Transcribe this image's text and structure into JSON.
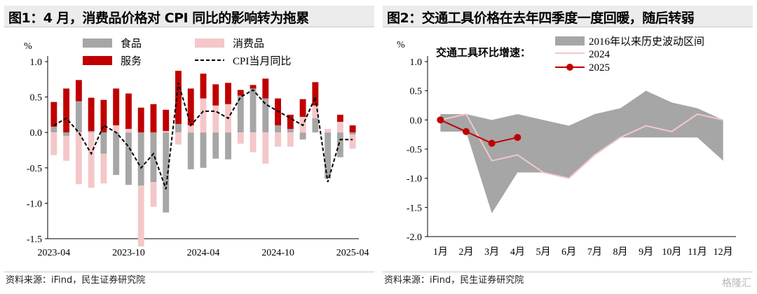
{
  "panel1": {
    "title": "图1：4 月，消费品价格对 CPI 同比的影响转为拖累",
    "source": "资料来源：iFind，民生证券研究院",
    "chart_data": {
      "type": "bar",
      "ylabel": "%",
      "ylim": [
        -1.5,
        1.0
      ],
      "yticks": [
        "1.0",
        "0.5",
        "0.0",
        "-0.5",
        "-1.0",
        "-1.5"
      ],
      "ytick_values": [
        1.0,
        0.5,
        0.0,
        -0.5,
        -1.0,
        -1.5
      ],
      "xtick_labels": [
        {
          "index": 0,
          "label": "2023-04"
        },
        {
          "index": 6,
          "label": "2023-10"
        },
        {
          "index": 12,
          "label": "2024-04"
        },
        {
          "index": 18,
          "label": "2024-10"
        },
        {
          "index": 24,
          "label": "2025-04"
        }
      ],
      "legend": [
        "食品",
        "消费品",
        "服务",
        "CPI当月同比"
      ],
      "colors": {
        "food": "#a6a6a6",
        "consumer": "#f4c7c9",
        "service": "#c00000",
        "cpi": "#000000"
      },
      "series": [
        {
          "name": "食品",
          "values": [
            0.08,
            -0.05,
            0.44,
            0.02,
            -0.3,
            -0.6,
            -0.74,
            -0.75,
            -0.7,
            -1.13,
            0.12,
            -0.52,
            -0.5,
            -0.37,
            -0.38,
            0.52,
            0.62,
            0.48,
            0.1,
            0.05,
            -0.1,
            0.2,
            -0.65,
            -0.35,
            -0.03
          ]
        },
        {
          "name": "消费品",
          "values": [
            -0.32,
            -0.35,
            -0.73,
            -0.78,
            -0.42,
            0.1,
            0.05,
            -0.86,
            -0.35,
            0.02,
            -0.17,
            0.1,
            0.48,
            0.38,
            0.4,
            -0.16,
            -0.28,
            -0.44,
            -0.2,
            -0.2,
            0.22,
            0.18,
            0.05,
            0.15,
            -0.2
          ]
        },
        {
          "name": "服务",
          "values": [
            0.35,
            0.62,
            0.3,
            0.47,
            0.46,
            0.52,
            0.5,
            0.35,
            0.4,
            0.3,
            0.75,
            0.52,
            0.35,
            0.3,
            0.3,
            0.08,
            0.05,
            0.28,
            0.38,
            0.2,
            0.25,
            0.33,
            0.0,
            0.1,
            0.1
          ]
        },
        {
          "name": "CPI当月同比",
          "values": [
            0.1,
            0.2,
            0.0,
            -0.3,
            0.1,
            0.0,
            -0.2,
            -0.5,
            -0.3,
            -0.8,
            0.7,
            0.1,
            0.3,
            0.3,
            0.2,
            0.5,
            0.6,
            0.4,
            0.3,
            0.2,
            0.1,
            0.5,
            -0.7,
            -0.1,
            -0.1
          ]
        }
      ]
    }
  },
  "panel2": {
    "title": "图2：交通工具价格在去年四季度一度回暖，随后转弱",
    "source": "资料来源：iFind，民生证券研究院",
    "inner_label": "交通工具环比增速：",
    "watermark": "格隆汇",
    "chart_data": {
      "type": "line",
      "ylabel": "%",
      "ylim": [
        -2.0,
        1.0
      ],
      "yticks": [
        "1.0",
        "0.5",
        "0.0",
        "-0.5",
        "-1.0",
        "-1.5",
        "-2.0"
      ],
      "ytick_values": [
        1.0,
        0.5,
        0.0,
        -0.5,
        -1.0,
        -1.5,
        -2.0
      ],
      "categories": [
        "1月",
        "2月",
        "3月",
        "4月",
        "5月",
        "6月",
        "7月",
        "8月",
        "9月",
        "10月",
        "11月",
        "12月"
      ],
      "legend": [
        "2016年以来历史波动区间",
        "2024",
        "2025"
      ],
      "colors": {
        "band": "#a6a6a6",
        "y2024": "#f4c7c9",
        "y2025": "#c00000"
      },
      "band": {
        "upper": [
          0.1,
          0.1,
          0.0,
          0.1,
          0.0,
          -0.1,
          0.1,
          0.2,
          0.5,
          0.3,
          0.2,
          0.0
        ],
        "lower": [
          -0.2,
          -0.2,
          -1.6,
          -0.9,
          -0.9,
          -1.0,
          -0.6,
          -0.3,
          -0.3,
          -0.3,
          -0.3,
          -0.7
        ]
      },
      "series": [
        {
          "name": "2024",
          "values": [
            0.0,
            0.1,
            -0.7,
            -0.6,
            -0.9,
            -1.0,
            -0.6,
            -0.3,
            -0.1,
            -0.2,
            0.1,
            0.0
          ]
        },
        {
          "name": "2025",
          "values": [
            0.0,
            -0.2,
            -0.4,
            -0.3,
            null,
            null,
            null,
            null,
            null,
            null,
            null,
            null
          ]
        }
      ]
    }
  }
}
